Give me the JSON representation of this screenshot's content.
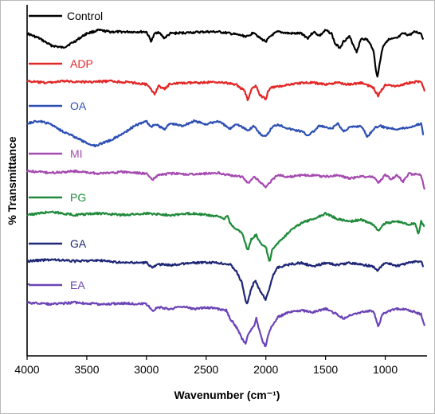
{
  "chart_data": {
    "type": "line",
    "xlabel": "Wavenumber (cm⁻¹)",
    "ylabel": "% Transmittance",
    "xlim": [
      4000,
      650
    ],
    "x_reversed": true,
    "x_ticks": [
      4000,
      3500,
      3000,
      2500,
      2000,
      1500,
      1000
    ],
    "grid": false,
    "legend_placement": "inline-left",
    "series": [
      {
        "name": "Control",
        "color": "#000000",
        "points": [
          [
            4000,
            42
          ],
          [
            3900,
            48
          ],
          [
            3800,
            57
          ],
          [
            3700,
            60
          ],
          [
            3600,
            52
          ],
          [
            3500,
            42
          ],
          [
            3400,
            38
          ],
          [
            3300,
            40
          ],
          [
            3200,
            40
          ],
          [
            3100,
            40
          ],
          [
            3000,
            40
          ],
          [
            2960,
            52
          ],
          [
            2930,
            42
          ],
          [
            2900,
            40
          ],
          [
            2850,
            48
          ],
          [
            2800,
            42
          ],
          [
            2500,
            40
          ],
          [
            2400,
            40
          ],
          [
            2300,
            42
          ],
          [
            2150,
            46
          ],
          [
            2100,
            40
          ],
          [
            2050,
            48
          ],
          [
            2000,
            52
          ],
          [
            1950,
            44
          ],
          [
            1900,
            40
          ],
          [
            1800,
            42
          ],
          [
            1700,
            42
          ],
          [
            1650,
            48
          ],
          [
            1600,
            40
          ],
          [
            1550,
            45
          ],
          [
            1500,
            38
          ],
          [
            1450,
            42
          ],
          [
            1420,
            55
          ],
          [
            1380,
            60
          ],
          [
            1350,
            52
          ],
          [
            1300,
            46
          ],
          [
            1240,
            65
          ],
          [
            1200,
            48
          ],
          [
            1150,
            50
          ],
          [
            1100,
            62
          ],
          [
            1080,
            86
          ],
          [
            1065,
            98
          ],
          [
            1050,
            82
          ],
          [
            1020,
            58
          ],
          [
            980,
            50
          ],
          [
            900,
            48
          ],
          [
            850,
            42
          ],
          [
            800,
            44
          ],
          [
            750,
            40
          ],
          [
            700,
            42
          ],
          [
            680,
            50
          ]
        ]
      },
      {
        "name": "ADP",
        "color": "#e32626",
        "points": [
          [
            4000,
            102
          ],
          [
            3850,
            104
          ],
          [
            3700,
            102
          ],
          [
            3500,
            103
          ],
          [
            3300,
            102
          ],
          [
            3100,
            104
          ],
          [
            3000,
            106
          ],
          [
            2930,
            118
          ],
          [
            2900,
            108
          ],
          [
            2850,
            112
          ],
          [
            2800,
            105
          ],
          [
            2600,
            104
          ],
          [
            2400,
            103
          ],
          [
            2250,
            106
          ],
          [
            2180,
            114
          ],
          [
            2150,
            126
          ],
          [
            2120,
            112
          ],
          [
            2080,
            108
          ],
          [
            2050,
            120
          ],
          [
            2000,
            124
          ],
          [
            1980,
            114
          ],
          [
            1950,
            110
          ],
          [
            1800,
            106
          ],
          [
            1700,
            104
          ],
          [
            1600,
            104
          ],
          [
            1500,
            106
          ],
          [
            1400,
            104
          ],
          [
            1300,
            106
          ],
          [
            1200,
            104
          ],
          [
            1100,
            110
          ],
          [
            1060,
            120
          ],
          [
            1000,
            106
          ],
          [
            900,
            108
          ],
          [
            800,
            104
          ],
          [
            700,
            102
          ],
          [
            670,
            115
          ]
        ]
      },
      {
        "name": "OA",
        "color": "#2d4fb2",
        "points": [
          [
            4000,
            155
          ],
          [
            3900,
            152
          ],
          [
            3800,
            156
          ],
          [
            3700,
            165
          ],
          [
            3600,
            172
          ],
          [
            3500,
            180
          ],
          [
            3430,
            183
          ],
          [
            3300,
            176
          ],
          [
            3200,
            168
          ],
          [
            3100,
            158
          ],
          [
            3000,
            152
          ],
          [
            2960,
            160
          ],
          [
            2930,
            156
          ],
          [
            2850,
            162
          ],
          [
            2800,
            155
          ],
          [
            2700,
            158
          ],
          [
            2600,
            152
          ],
          [
            2500,
            156
          ],
          [
            2400,
            152
          ],
          [
            2300,
            162
          ],
          [
            2250,
            155
          ],
          [
            2150,
            164
          ],
          [
            2100,
            158
          ],
          [
            2050,
            168
          ],
          [
            2000,
            172
          ],
          [
            1950,
            160
          ],
          [
            1900,
            156
          ],
          [
            1800,
            162
          ],
          [
            1700,
            165
          ],
          [
            1650,
            170
          ],
          [
            1600,
            165
          ],
          [
            1550,
            158
          ],
          [
            1450,
            162
          ],
          [
            1400,
            155
          ],
          [
            1350,
            165
          ],
          [
            1300,
            160
          ],
          [
            1200,
            158
          ],
          [
            1150,
            172
          ],
          [
            1100,
            162
          ],
          [
            1050,
            158
          ],
          [
            1000,
            160
          ],
          [
            900,
            162
          ],
          [
            800,
            160
          ],
          [
            700,
            155
          ],
          [
            680,
            170
          ]
        ]
      },
      {
        "name": "MI",
        "color": "#a54ab0",
        "points": [
          [
            4000,
            215
          ],
          [
            3800,
            217
          ],
          [
            3600,
            215
          ],
          [
            3400,
            218
          ],
          [
            3200,
            216
          ],
          [
            3000,
            218
          ],
          [
            2950,
            226
          ],
          [
            2900,
            220
          ],
          [
            2800,
            218
          ],
          [
            2600,
            219
          ],
          [
            2400,
            217
          ],
          [
            2300,
            220
          ],
          [
            2200,
            222
          ],
          [
            2150,
            230
          ],
          [
            2100,
            222
          ],
          [
            2050,
            228
          ],
          [
            2000,
            236
          ],
          [
            1950,
            226
          ],
          [
            1900,
            220
          ],
          [
            1800,
            222
          ],
          [
            1700,
            220
          ],
          [
            1600,
            220
          ],
          [
            1500,
            222
          ],
          [
            1400,
            220
          ],
          [
            1300,
            224
          ],
          [
            1200,
            222
          ],
          [
            1100,
            222
          ],
          [
            1060,
            230
          ],
          [
            1000,
            220
          ],
          [
            950,
            225
          ],
          [
            900,
            220
          ],
          [
            850,
            228
          ],
          [
            800,
            218
          ],
          [
            700,
            220
          ],
          [
            670,
            238
          ]
        ]
      },
      {
        "name": "PG",
        "color": "#1f8a3a",
        "points": [
          [
            4000,
            270
          ],
          [
            3800,
            266
          ],
          [
            3600,
            270
          ],
          [
            3400,
            268
          ],
          [
            3200,
            270
          ],
          [
            3000,
            268
          ],
          [
            2800,
            270
          ],
          [
            2600,
            268
          ],
          [
            2400,
            272
          ],
          [
            2350,
            275
          ],
          [
            2320,
            270
          ],
          [
            2300,
            280
          ],
          [
            2250,
            288
          ],
          [
            2200,
            292
          ],
          [
            2150,
            315
          ],
          [
            2120,
            300
          ],
          [
            2080,
            295
          ],
          [
            2050,
            305
          ],
          [
            2000,
            310
          ],
          [
            1970,
            330
          ],
          [
            1950,
            315
          ],
          [
            1900,
            305
          ],
          [
            1850,
            298
          ],
          [
            1800,
            290
          ],
          [
            1700,
            280
          ],
          [
            1600,
            275
          ],
          [
            1500,
            268
          ],
          [
            1400,
            275
          ],
          [
            1300,
            278
          ],
          [
            1200,
            276
          ],
          [
            1100,
            282
          ],
          [
            1060,
            290
          ],
          [
            1000,
            280
          ],
          [
            900,
            278
          ],
          [
            800,
            282
          ],
          [
            750,
            280
          ],
          [
            720,
            295
          ],
          [
            700,
            278
          ],
          [
            670,
            285
          ]
        ]
      },
      {
        "name": "GA",
        "color": "#1e2676",
        "points": [
          [
            4000,
            328
          ],
          [
            3800,
            326
          ],
          [
            3600,
            328
          ],
          [
            3400,
            327
          ],
          [
            3200,
            330
          ],
          [
            3000,
            330
          ],
          [
            2950,
            336
          ],
          [
            2900,
            332
          ],
          [
            2800,
            333
          ],
          [
            2600,
            330
          ],
          [
            2400,
            330
          ],
          [
            2300,
            332
          ],
          [
            2250,
            340
          ],
          [
            2200,
            355
          ],
          [
            2180,
            370
          ],
          [
            2160,
            383
          ],
          [
            2120,
            362
          ],
          [
            2090,
            352
          ],
          [
            2060,
            362
          ],
          [
            2030,
            370
          ],
          [
            2000,
            376
          ],
          [
            1970,
            362
          ],
          [
            1940,
            345
          ],
          [
            1900,
            336
          ],
          [
            1800,
            332
          ],
          [
            1700,
            330
          ],
          [
            1600,
            335
          ],
          [
            1500,
            330
          ],
          [
            1400,
            333
          ],
          [
            1300,
            330
          ],
          [
            1200,
            332
          ],
          [
            1100,
            335
          ],
          [
            1070,
            340
          ],
          [
            1000,
            330
          ],
          [
            900,
            334
          ],
          [
            800,
            330
          ],
          [
            700,
            328
          ],
          [
            680,
            335
          ]
        ]
      },
      {
        "name": "EA",
        "color": "#6b44b6",
        "points": [
          [
            4000,
            380
          ],
          [
            3800,
            382
          ],
          [
            3600,
            380
          ],
          [
            3400,
            382
          ],
          [
            3200,
            381
          ],
          [
            3000,
            382
          ],
          [
            2950,
            390
          ],
          [
            2900,
            386
          ],
          [
            2800,
            388
          ],
          [
            2700,
            385
          ],
          [
            2600,
            388
          ],
          [
            2500,
            386
          ],
          [
            2400,
            388
          ],
          [
            2330,
            390
          ],
          [
            2300,
            400
          ],
          [
            2250,
            410
          ],
          [
            2200,
            425
          ],
          [
            2170,
            432
          ],
          [
            2150,
            420
          ],
          [
            2100,
            410
          ],
          [
            2080,
            400
          ],
          [
            2050,
            418
          ],
          [
            2030,
            428
          ],
          [
            2000,
            436
          ],
          [
            1980,
            420
          ],
          [
            1950,
            410
          ],
          [
            1900,
            398
          ],
          [
            1800,
            392
          ],
          [
            1700,
            390
          ],
          [
            1600,
            392
          ],
          [
            1500,
            388
          ],
          [
            1400,
            395
          ],
          [
            1350,
            400
          ],
          [
            1300,
            396
          ],
          [
            1200,
            392
          ],
          [
            1100,
            390
          ],
          [
            1060,
            410
          ],
          [
            1020,
            394
          ],
          [
            950,
            390
          ],
          [
            900,
            388
          ],
          [
            850,
            388
          ],
          [
            800,
            390
          ],
          [
            750,
            392
          ],
          [
            700,
            395
          ],
          [
            670,
            410
          ]
        ]
      }
    ]
  }
}
